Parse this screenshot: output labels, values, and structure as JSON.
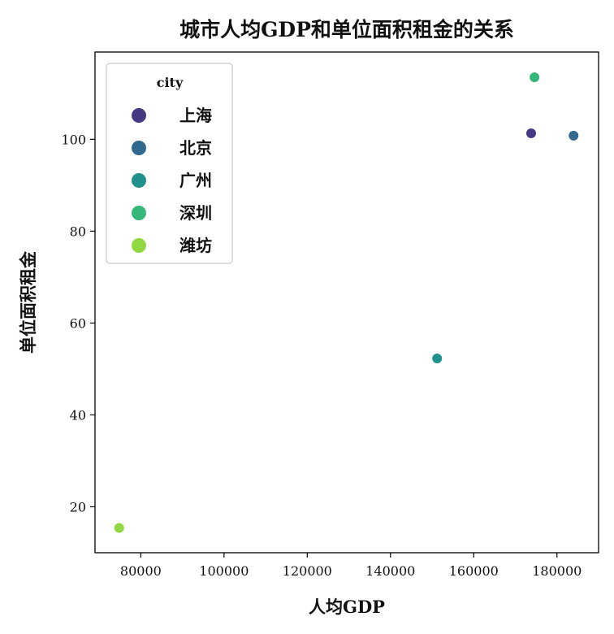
{
  "chart_data": {
    "type": "scatter",
    "title": "城市人均GDP和单位面积租金的关系",
    "xlabel": "人均GDP",
    "ylabel": "单位面积租金",
    "xlim": [
      69000,
      190000
    ],
    "ylim": [
      10,
      119
    ],
    "xticks": [
      80000,
      100000,
      120000,
      140000,
      160000,
      180000
    ],
    "yticks": [
      20,
      40,
      60,
      80,
      100
    ],
    "grid": false,
    "legend": {
      "title": "city",
      "placement": "top-left"
    },
    "series": [
      {
        "name": "上海",
        "color": "#443983",
        "x": [
          173800
        ],
        "y": [
          101.3
        ]
      },
      {
        "name": "北京",
        "color": "#31688e",
        "x": [
          184000
        ],
        "y": [
          100.8
        ]
      },
      {
        "name": "广州",
        "color": "#21918c",
        "x": [
          151200
        ],
        "y": [
          52.3
        ]
      },
      {
        "name": "深圳",
        "color": "#35b779",
        "x": [
          174600
        ],
        "y": [
          113.5
        ]
      },
      {
        "name": "潍坊",
        "color": "#90d743",
        "x": [
          74800
        ],
        "y": [
          15.4
        ]
      }
    ]
  }
}
